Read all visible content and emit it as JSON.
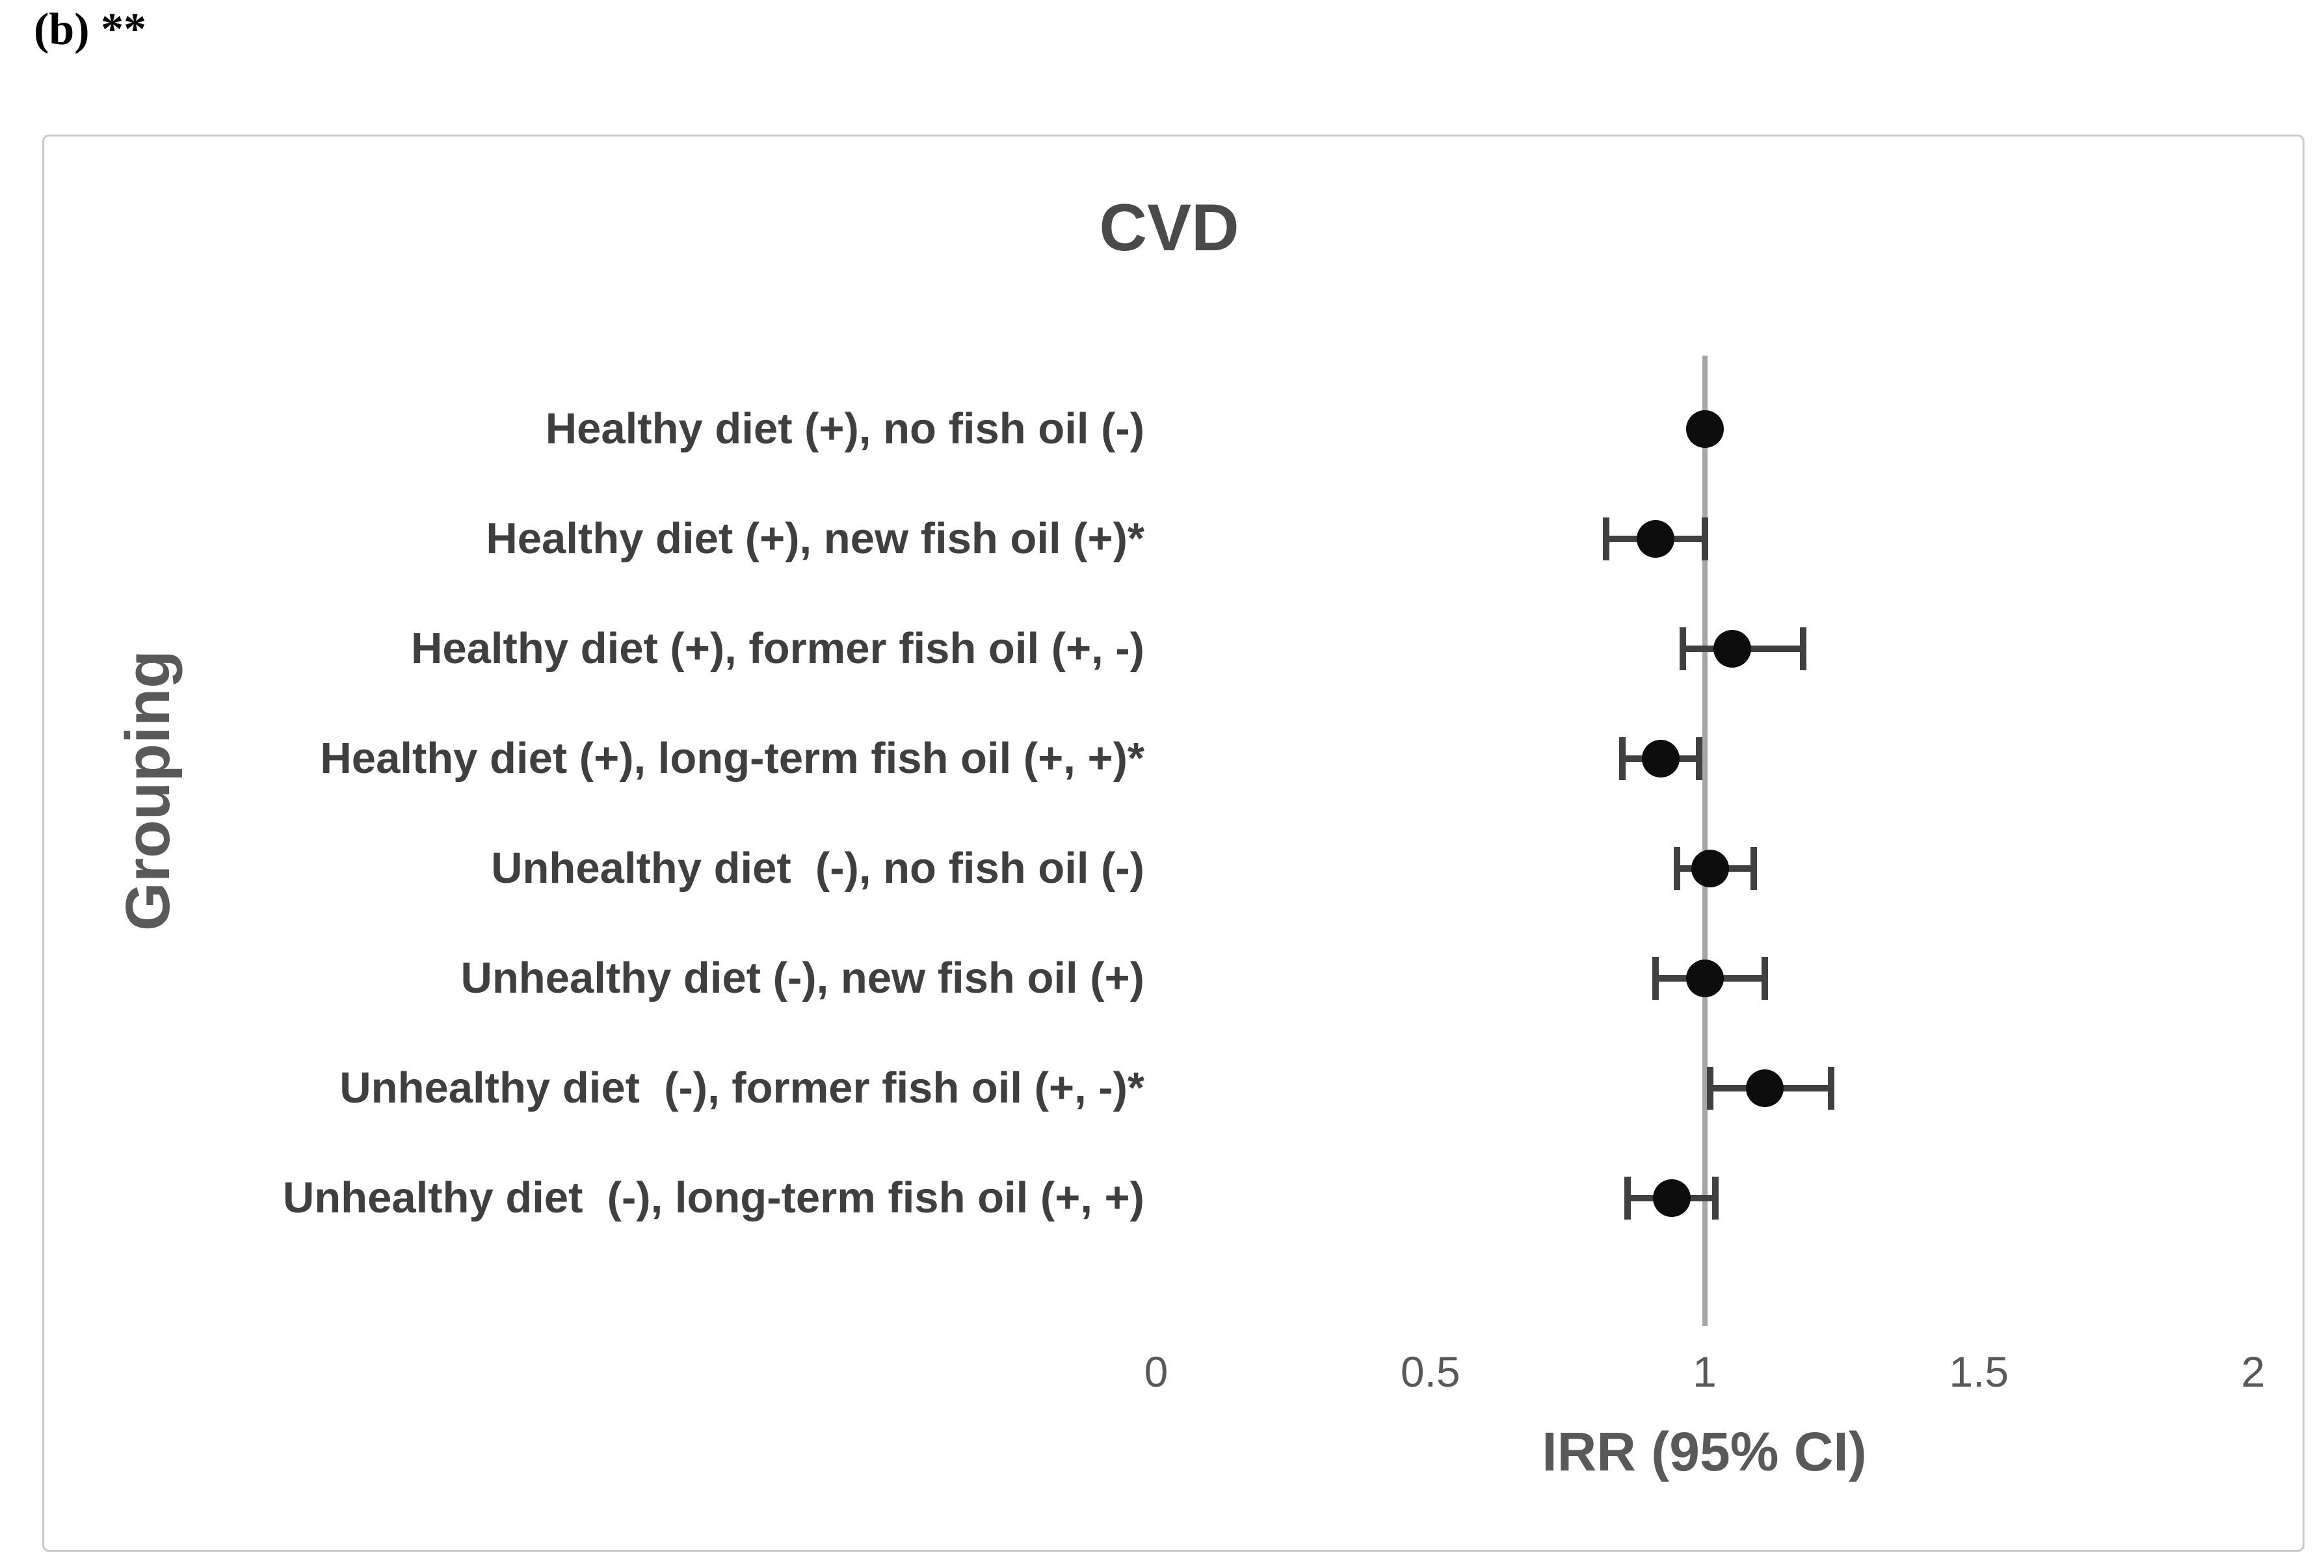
{
  "figure": {
    "label": "(b) **"
  },
  "chart_data": {
    "type": "scatter",
    "subtype": "forest-plot",
    "title": "CVD",
    "xlabel": "IRR (95% CI)",
    "ylabel": "Grouping",
    "xlim": [
      0,
      2
    ],
    "xtick_labels": [
      "0",
      "0.5",
      "1",
      "1.5",
      "2"
    ],
    "xtick_values": [
      0,
      0.5,
      1,
      1.5,
      2
    ],
    "refline_x": 1,
    "grid": false,
    "legend": false,
    "categories": [
      "Healthy diet (+), no fish oil (-)",
      "Healthy diet (+), new fish oil (+)*",
      "Healthy diet (+), former fish oil (+, -)",
      "Healthy diet (+), long-term fish oil (+, +)*",
      "Unhealthy diet  (-), no fish oil (-)",
      "Unhealthy diet (-), new fish oil (+)",
      "Unhealthy diet  (-), former fish oil (+, -)*",
      "Unhealthy diet  (-), long-term fish oil (+, +)"
    ],
    "series": [
      {
        "name": "IRR",
        "values": [
          1.0,
          0.91,
          1.05,
          0.92,
          1.01,
          1.0,
          1.11,
          0.94
        ],
        "ci_low": [
          1.0,
          0.82,
          0.96,
          0.85,
          0.95,
          0.91,
          1.01,
          0.86
        ],
        "ci_high": [
          1.0,
          1.0,
          1.18,
          0.99,
          1.09,
          1.11,
          1.23,
          1.02
        ]
      }
    ]
  },
  "colors": {
    "marker": "#0d0d0d",
    "error_bar": "#404040",
    "reference_line": "#a6a6a6",
    "box_border": "#c9c9c9",
    "title_text": "#4a4a4a",
    "label_text": "#3f3f3f",
    "tick_text": "#595959"
  }
}
